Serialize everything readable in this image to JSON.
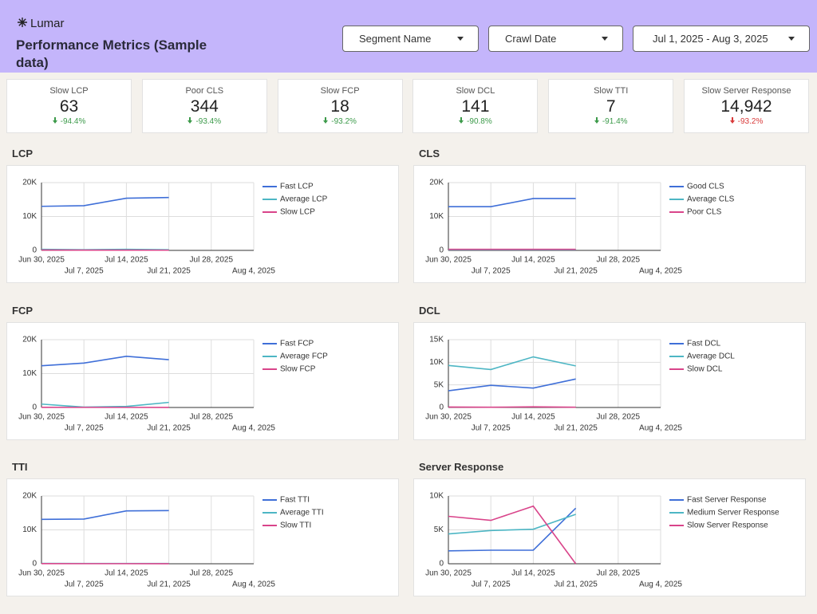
{
  "header": {
    "logo": "Lumar",
    "title": "Performance Metrics (Sample data)"
  },
  "filters": [
    "Segment Name",
    "Crawl Date",
    "Jul 1, 2025 - Aug 3, 2025"
  ],
  "kpis": [
    {
      "label": "Slow LCP",
      "value": "63",
      "change": "-94.4%",
      "color": "#3c9a4a"
    },
    {
      "label": "Poor CLS",
      "value": "344",
      "change": "-93.4%",
      "color": "#3c9a4a"
    },
    {
      "label": "Slow FCP",
      "value": "18",
      "change": "-93.2%",
      "color": "#3c9a4a"
    },
    {
      "label": "Slow DCL",
      "value": "141",
      "change": "-90.8%",
      "color": "#3c9a4a"
    },
    {
      "label": "Slow TTI",
      "value": "7",
      "change": "-91.4%",
      "color": "#3c9a4a"
    },
    {
      "label": "Slow Server Response",
      "value": "14,942",
      "change": "-93.2%",
      "color": "#d93a3a"
    }
  ],
  "chart_data": [
    {
      "type": "line",
      "title": "LCP",
      "x": [
        "2025-06-30",
        "2025-07-07",
        "2025-07-14",
        "2025-07-21"
      ],
      "xlim": [
        "2025-06-30",
        "2025-08-04"
      ],
      "xticks": [
        {
          "value": "2025-06-30",
          "label": "Jun 30, 2025"
        },
        {
          "value": "2025-07-07",
          "label": "Jul 7, 2025"
        },
        {
          "value": "2025-07-14",
          "label": "Jul 14, 2025"
        },
        {
          "value": "2025-07-21",
          "label": "Jul 21, 2025"
        },
        {
          "value": "2025-07-28",
          "label": "Jul 28, 2025"
        },
        {
          "value": "2025-08-04",
          "label": "Aug 4, 2025"
        }
      ],
      "ylim": [
        0,
        20000
      ],
      "yticks": [
        0,
        {
          "value": 10000,
          "label": "10K"
        },
        {
          "value": 20000,
          "label": "20K"
        }
      ],
      "grid": true,
      "legend": "right",
      "series": [
        {
          "name": "Fast LCP",
          "color": "#3f6fd8",
          "values": [
            13000,
            13200,
            15400,
            15600
          ]
        },
        {
          "name": "Average LCP",
          "color": "#4db6c4",
          "values": [
            300,
            200,
            300,
            200
          ]
        },
        {
          "name": "Slow LCP",
          "color": "#d9448a",
          "values": [
            100,
            80,
            80,
            60
          ]
        }
      ]
    },
    {
      "type": "line",
      "title": "CLS",
      "x": [
        "2025-06-30",
        "2025-07-07",
        "2025-07-14",
        "2025-07-21"
      ],
      "xlim": [
        "2025-06-30",
        "2025-08-04"
      ],
      "xticks": [
        {
          "value": "2025-06-30",
          "label": "Jun 30, 2025"
        },
        {
          "value": "2025-07-07",
          "label": "Jul 7, 2025"
        },
        {
          "value": "2025-07-14",
          "label": "Jul 14, 2025"
        },
        {
          "value": "2025-07-21",
          "label": "Jul 21, 2025"
        },
        {
          "value": "2025-07-28",
          "label": "Jul 28, 2025"
        },
        {
          "value": "2025-08-04",
          "label": "Aug 4, 2025"
        }
      ],
      "ylim": [
        0,
        20000
      ],
      "yticks": [
        0,
        {
          "value": 10000,
          "label": "10K"
        },
        {
          "value": 20000,
          "label": "20K"
        }
      ],
      "grid": true,
      "legend": "right",
      "series": [
        {
          "name": "Good CLS",
          "color": "#3f6fd8",
          "values": [
            12900,
            12900,
            15300,
            15300
          ]
        },
        {
          "name": "Average CLS",
          "color": "#4db6c4",
          "values": [
            200,
            200,
            200,
            200
          ]
        },
        {
          "name": "Poor CLS",
          "color": "#d9448a",
          "values": [
            300,
            300,
            300,
            300
          ]
        }
      ]
    },
    {
      "type": "line",
      "title": "FCP",
      "x": [
        "2025-06-30",
        "2025-07-07",
        "2025-07-14",
        "2025-07-21"
      ],
      "xlim": [
        "2025-06-30",
        "2025-08-04"
      ],
      "xticks": [
        {
          "value": "2025-06-30",
          "label": "Jun 30, 2025"
        },
        {
          "value": "2025-07-07",
          "label": "Jul 7, 2025"
        },
        {
          "value": "2025-07-14",
          "label": "Jul 14, 2025"
        },
        {
          "value": "2025-07-21",
          "label": "Jul 21, 2025"
        },
        {
          "value": "2025-07-28",
          "label": "Jul 28, 2025"
        },
        {
          "value": "2025-08-04",
          "label": "Aug 4, 2025"
        }
      ],
      "ylim": [
        0,
        20000
      ],
      "yticks": [
        0,
        {
          "value": 10000,
          "label": "10K"
        },
        {
          "value": 20000,
          "label": "20K"
        }
      ],
      "grid": true,
      "legend": "right",
      "series": [
        {
          "name": "Fast FCP",
          "color": "#3f6fd8",
          "values": [
            12300,
            13100,
            15100,
            14100
          ]
        },
        {
          "name": "Average FCP",
          "color": "#4db6c4",
          "values": [
            1000,
            100,
            300,
            1500
          ]
        },
        {
          "name": "Slow FCP",
          "color": "#d9448a",
          "values": [
            50,
            30,
            30,
            20
          ]
        }
      ]
    },
    {
      "type": "line",
      "title": "DCL",
      "x": [
        "2025-06-30",
        "2025-07-07",
        "2025-07-14",
        "2025-07-21"
      ],
      "xlim": [
        "2025-06-30",
        "2025-08-04"
      ],
      "xticks": [
        {
          "value": "2025-06-30",
          "label": "Jun 30, 2025"
        },
        {
          "value": "2025-07-07",
          "label": "Jul 7, 2025"
        },
        {
          "value": "2025-07-14",
          "label": "Jul 14, 2025"
        },
        {
          "value": "2025-07-21",
          "label": "Jul 21, 2025"
        },
        {
          "value": "2025-07-28",
          "label": "Jul 28, 2025"
        },
        {
          "value": "2025-08-04",
          "label": "Aug 4, 2025"
        }
      ],
      "ylim": [
        0,
        15000
      ],
      "yticks": [
        0,
        {
          "value": 5000,
          "label": "5K"
        },
        {
          "value": 10000,
          "label": "10K"
        },
        {
          "value": 15000,
          "label": "15K"
        }
      ],
      "grid": true,
      "legend": "right",
      "series": [
        {
          "name": "Fast DCL",
          "color": "#3f6fd8",
          "values": [
            3700,
            4900,
            4300,
            6300
          ]
        },
        {
          "name": "Average DCL",
          "color": "#4db6c4",
          "values": [
            9300,
            8400,
            11200,
            9200
          ]
        },
        {
          "name": "Slow DCL",
          "color": "#d9448a",
          "values": [
            100,
            50,
            150,
            50
          ]
        }
      ]
    },
    {
      "type": "line",
      "title": "TTI",
      "x": [
        "2025-06-30",
        "2025-07-07",
        "2025-07-14",
        "2025-07-21"
      ],
      "xlim": [
        "2025-06-30",
        "2025-08-04"
      ],
      "xticks": [
        {
          "value": "2025-06-30",
          "label": "Jun 30, 2025"
        },
        {
          "value": "2025-07-07",
          "label": "Jul 7, 2025"
        },
        {
          "value": "2025-07-14",
          "label": "Jul 14, 2025"
        },
        {
          "value": "2025-07-21",
          "label": "Jul 21, 2025"
        },
        {
          "value": "2025-07-28",
          "label": "Jul 28, 2025"
        },
        {
          "value": "2025-08-04",
          "label": "Aug 4, 2025"
        }
      ],
      "ylim": [
        0,
        20000
      ],
      "yticks": [
        0,
        {
          "value": 10000,
          "label": "10K"
        },
        {
          "value": 20000,
          "label": "20K"
        }
      ],
      "grid": true,
      "legend": "right",
      "series": [
        {
          "name": "Fast TTI",
          "color": "#3f6fd8",
          "values": [
            13100,
            13200,
            15600,
            15700
          ]
        },
        {
          "name": "Average TTI",
          "color": "#4db6c4",
          "values": [
            100,
            80,
            80,
            80
          ]
        },
        {
          "name": "Slow TTI",
          "color": "#d9448a",
          "values": [
            50,
            30,
            30,
            20
          ]
        }
      ]
    },
    {
      "type": "line",
      "title": "Server Response",
      "x": [
        "2025-06-30",
        "2025-07-07",
        "2025-07-14",
        "2025-07-21"
      ],
      "xlim": [
        "2025-06-30",
        "2025-08-04"
      ],
      "xticks": [
        {
          "value": "2025-06-30",
          "label": "Jun 30, 2025"
        },
        {
          "value": "2025-07-07",
          "label": "Jul 7, 2025"
        },
        {
          "value": "2025-07-14",
          "label": "Jul 14, 2025"
        },
        {
          "value": "2025-07-21",
          "label": "Jul 21, 2025"
        },
        {
          "value": "2025-07-28",
          "label": "Jul 28, 2025"
        },
        {
          "value": "2025-08-04",
          "label": "Aug 4, 2025"
        }
      ],
      "ylim": [
        0,
        10000
      ],
      "yticks": [
        0,
        {
          "value": 5000,
          "label": "5K"
        },
        {
          "value": 10000,
          "label": "10K"
        }
      ],
      "grid": true,
      "legend": "right",
      "series": [
        {
          "name": "Fast Server Response",
          "color": "#3f6fd8",
          "values": [
            1900,
            2000,
            2000,
            8200
          ]
        },
        {
          "name": "Medium Server Response",
          "color": "#4db6c4",
          "values": [
            4400,
            4900,
            5100,
            7300
          ]
        },
        {
          "name": "Slow Server Response",
          "color": "#d9448a",
          "values": [
            7000,
            6400,
            8500,
            0
          ]
        }
      ]
    }
  ]
}
